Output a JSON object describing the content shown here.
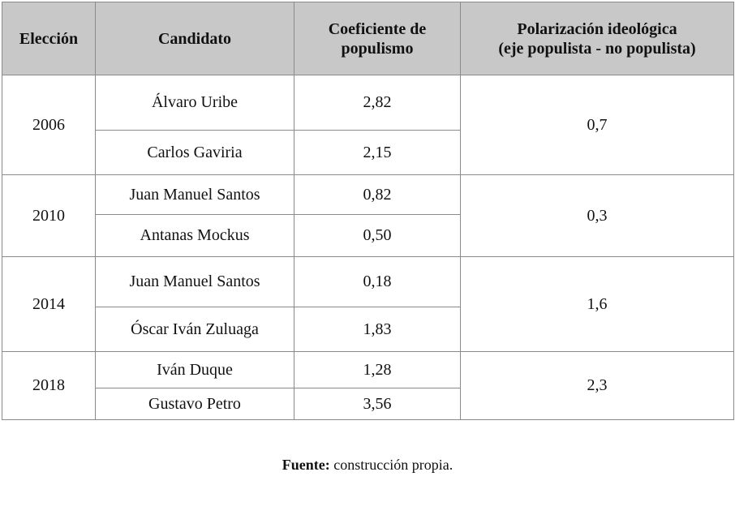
{
  "headers": [
    "Elección",
    "Candidato",
    "Coeficiente de populismo",
    "Polarización ideológica (eje populista - no populista)"
  ],
  "header_lines": {
    "h2a": "Coeficiente de",
    "h2b": "populismo",
    "h3a": "Polarización ideológica",
    "h3b": "(eje populista - no populista)"
  },
  "rows": [
    {
      "year": "2006",
      "polarization": "0,7",
      "candidates": [
        {
          "name": "Álvaro Uribe",
          "coef": "2,82"
        },
        {
          "name": "Carlos Gaviria",
          "coef": "2,15"
        }
      ]
    },
    {
      "year": "2010",
      "polarization": "0,3",
      "candidates": [
        {
          "name": "Juan Manuel Santos",
          "coef": "0,82"
        },
        {
          "name": "Antanas Mockus",
          "coef": "0,50"
        }
      ]
    },
    {
      "year": "2014",
      "polarization": "1,6",
      "candidates": [
        {
          "name": "Juan Manuel Santos",
          "coef": "0,18"
        },
        {
          "name": "Óscar Iván Zuluaga",
          "coef": "1,83"
        }
      ]
    },
    {
      "year": "2018",
      "polarization": "2,3",
      "candidates": [
        {
          "name": "Iván Duque",
          "coef": "1,28"
        },
        {
          "name": "Gustavo Petro",
          "coef": "3,56"
        }
      ]
    }
  ],
  "source": {
    "label": "Fuente:",
    "text": " construcción propia."
  }
}
